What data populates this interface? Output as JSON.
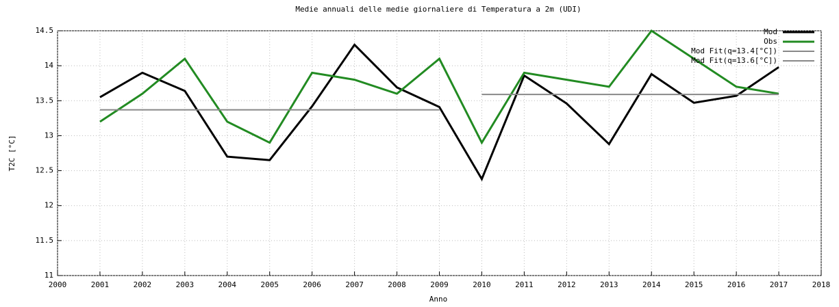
{
  "chart_data": {
    "type": "line",
    "title": "Medie annuali delle medie giornaliere di Temperatura a 2m (UDI)",
    "x_label": "Anno",
    "y_label": "T2C [°C]",
    "xlim": [
      2000,
      2018
    ],
    "xticks": [
      2000,
      2001,
      2002,
      2003,
      2004,
      2005,
      2006,
      2007,
      2008,
      2009,
      2010,
      2011,
      2012,
      2013,
      2014,
      2015,
      2016,
      2017,
      2018
    ],
    "ylim": [
      11,
      14.5
    ],
    "yticks": [
      11,
      11.5,
      12,
      12.5,
      13,
      13.5,
      14,
      14.5
    ],
    "grid": true,
    "legend": "top-right",
    "series": [
      {
        "name": "Mod",
        "color": "#000000",
        "x": [
          2001,
          2002,
          2003,
          2004,
          2005,
          2006,
          2007,
          2008,
          2009,
          2010,
          2011,
          2012,
          2013,
          2014,
          2015,
          2016,
          2017
        ],
        "values": [
          13.55,
          13.9,
          13.64,
          12.7,
          12.65,
          13.42,
          14.3,
          13.69,
          13.41,
          12.38,
          13.86,
          13.46,
          12.88,
          13.88,
          13.47,
          13.57,
          13.98
        ]
      },
      {
        "name": "Obs",
        "color": "#228b22",
        "x": [
          2001,
          2002,
          2003,
          2004,
          2005,
          2006,
          2007,
          2008,
          2009,
          2010,
          2011,
          2012,
          2013,
          2014,
          2015,
          2016,
          2017
        ],
        "values": [
          13.2,
          13.6,
          14.1,
          13.2,
          12.9,
          13.9,
          13.8,
          13.6,
          14.1,
          12.9,
          13.9,
          13.8,
          13.7,
          14.5,
          14.1,
          13.7,
          13.6
        ]
      },
      {
        "name": "Mod Fit(q=13.4[°C])",
        "color": "#888888",
        "x": [
          2001,
          2009
        ],
        "values": [
          13.37,
          13.37
        ]
      },
      {
        "name": "Mod Fit(q=13.6[°C])",
        "color": "#888888",
        "x": [
          2010,
          2017
        ],
        "values": [
          13.59,
          13.59
        ]
      }
    ]
  }
}
